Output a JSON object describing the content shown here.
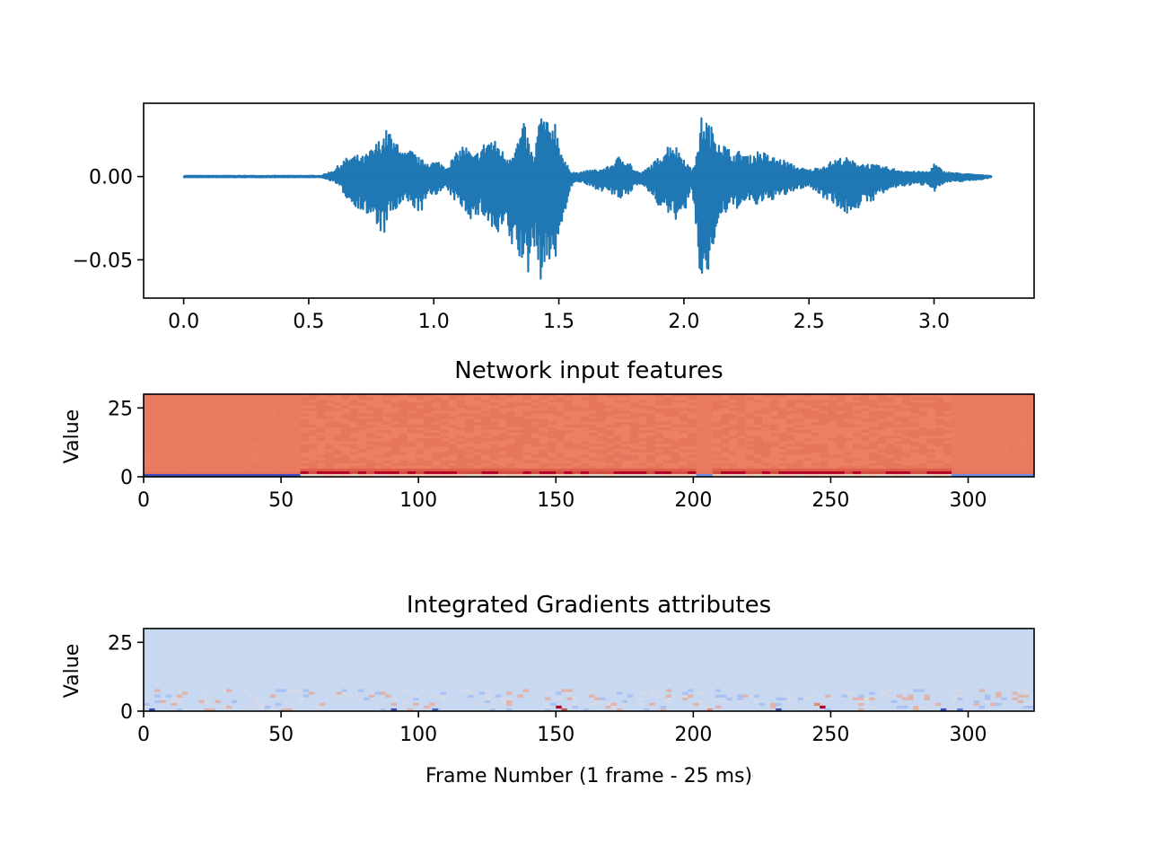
{
  "chart_data": [
    {
      "type": "line",
      "title": "",
      "xlabel": "",
      "ylabel": "",
      "xlim": [
        -0.16,
        3.4
      ],
      "ylim": [
        -0.073,
        0.044
      ],
      "xticks": [
        0.0,
        0.5,
        1.0,
        1.5,
        2.0,
        2.5,
        3.0
      ],
      "xtick_labels": [
        "0.0",
        "0.5",
        "1.0",
        "1.5",
        "2.0",
        "2.5",
        "3.0"
      ],
      "yticks": [
        0.0,
        -0.05
      ],
      "ytick_labels": [
        "0.00",
        "−0.05"
      ],
      "grid": false,
      "series_color": "#1f77b4",
      "envelope": {
        "t": [
          0.0,
          0.55,
          0.6,
          0.64,
          0.66,
          0.69,
          0.72,
          0.76,
          0.8,
          0.82,
          0.84,
          0.86,
          0.88,
          0.91,
          0.95,
          0.98,
          1.02,
          1.05,
          1.08,
          1.12,
          1.16,
          1.19,
          1.22,
          1.26,
          1.28,
          1.3,
          1.33,
          1.36,
          1.38,
          1.4,
          1.42,
          1.44,
          1.46,
          1.48,
          1.5,
          1.52,
          1.55,
          1.58,
          1.62,
          1.66,
          1.7,
          1.74,
          1.78,
          1.8,
          1.83,
          1.86,
          1.89,
          1.92,
          1.95,
          1.99,
          2.03,
          2.05,
          2.07,
          2.09,
          2.11,
          2.14,
          2.17,
          2.2,
          2.23,
          2.26,
          2.3,
          2.35,
          2.4,
          2.45,
          2.5,
          2.55,
          2.6,
          2.64,
          2.68,
          2.72,
          2.76,
          2.8,
          2.86,
          2.92,
          2.98,
          3.0,
          3.04,
          3.1,
          3.18,
          3.23
        ],
        "upper": [
          0.0005,
          0.0005,
          0.004,
          0.01,
          0.012,
          0.013,
          0.012,
          0.018,
          0.026,
          0.03,
          0.02,
          0.024,
          0.014,
          0.016,
          0.01,
          0.009,
          0.009,
          0.006,
          0.012,
          0.02,
          0.012,
          0.018,
          0.024,
          0.02,
          0.014,
          0.012,
          0.02,
          0.032,
          0.022,
          0.01,
          0.035,
          0.039,
          0.03,
          0.038,
          0.024,
          0.01,
          0.003,
          0.002,
          0.004,
          0.004,
          0.006,
          0.012,
          0.01,
          0.004,
          0.002,
          0.006,
          0.01,
          0.016,
          0.022,
          0.014,
          0.004,
          0.012,
          0.036,
          0.035,
          0.03,
          0.024,
          0.018,
          0.014,
          0.016,
          0.012,
          0.016,
          0.012,
          0.01,
          0.006,
          0.004,
          0.006,
          0.01,
          0.012,
          0.009,
          0.008,
          0.007,
          0.006,
          0.004,
          0.003,
          0.003,
          0.008,
          0.003,
          0.002,
          0.001,
          0.0005
        ],
        "lower": [
          -0.0005,
          -0.0005,
          -0.003,
          -0.01,
          -0.016,
          -0.018,
          -0.022,
          -0.028,
          -0.036,
          -0.026,
          -0.022,
          -0.02,
          -0.016,
          -0.018,
          -0.022,
          -0.012,
          -0.01,
          -0.008,
          -0.014,
          -0.02,
          -0.028,
          -0.022,
          -0.03,
          -0.04,
          -0.03,
          -0.042,
          -0.045,
          -0.058,
          -0.06,
          -0.04,
          -0.06,
          -0.065,
          -0.05,
          -0.055,
          -0.045,
          -0.024,
          -0.006,
          -0.003,
          -0.006,
          -0.008,
          -0.01,
          -0.014,
          -0.012,
          -0.006,
          -0.004,
          -0.01,
          -0.016,
          -0.022,
          -0.024,
          -0.028,
          -0.008,
          -0.04,
          -0.067,
          -0.068,
          -0.048,
          -0.03,
          -0.022,
          -0.02,
          -0.018,
          -0.016,
          -0.018,
          -0.014,
          -0.012,
          -0.008,
          -0.006,
          -0.012,
          -0.016,
          -0.024,
          -0.02,
          -0.018,
          -0.014,
          -0.01,
          -0.006,
          -0.005,
          -0.005,
          -0.009,
          -0.004,
          -0.003,
          -0.002,
          -0.0005
        ]
      }
    },
    {
      "type": "heatmap",
      "title": "Network input features",
      "xlabel": "",
      "ylabel": "Value",
      "xlim": [
        0,
        324
      ],
      "ylim": [
        0,
        30
      ],
      "xticks": [
        0,
        50,
        100,
        150,
        200,
        250,
        300
      ],
      "xtick_labels": [
        "0",
        "50",
        "100",
        "150",
        "200",
        "250",
        "300"
      ],
      "yticks": [
        0,
        25
      ],
      "ytick_labels": [
        "0",
        "25"
      ],
      "colormap": "coolwarm",
      "base_color": "#e97a5f",
      "grid": false
    },
    {
      "type": "heatmap",
      "title": "Integrated Gradients attributes",
      "xlabel": "Frame Number (1 frame - 25 ms)",
      "ylabel": "Value",
      "xlim": [
        0,
        324
      ],
      "ylim": [
        0,
        30
      ],
      "xticks": [
        0,
        50,
        100,
        150,
        200,
        250,
        300
      ],
      "xtick_labels": [
        "0",
        "50",
        "100",
        "150",
        "200",
        "250",
        "300"
      ],
      "yticks": [
        0,
        25
      ],
      "ytick_labels": [
        "0",
        "25"
      ],
      "colormap": "coolwarm",
      "base_color": "#c8d8f0",
      "grid": false
    }
  ]
}
